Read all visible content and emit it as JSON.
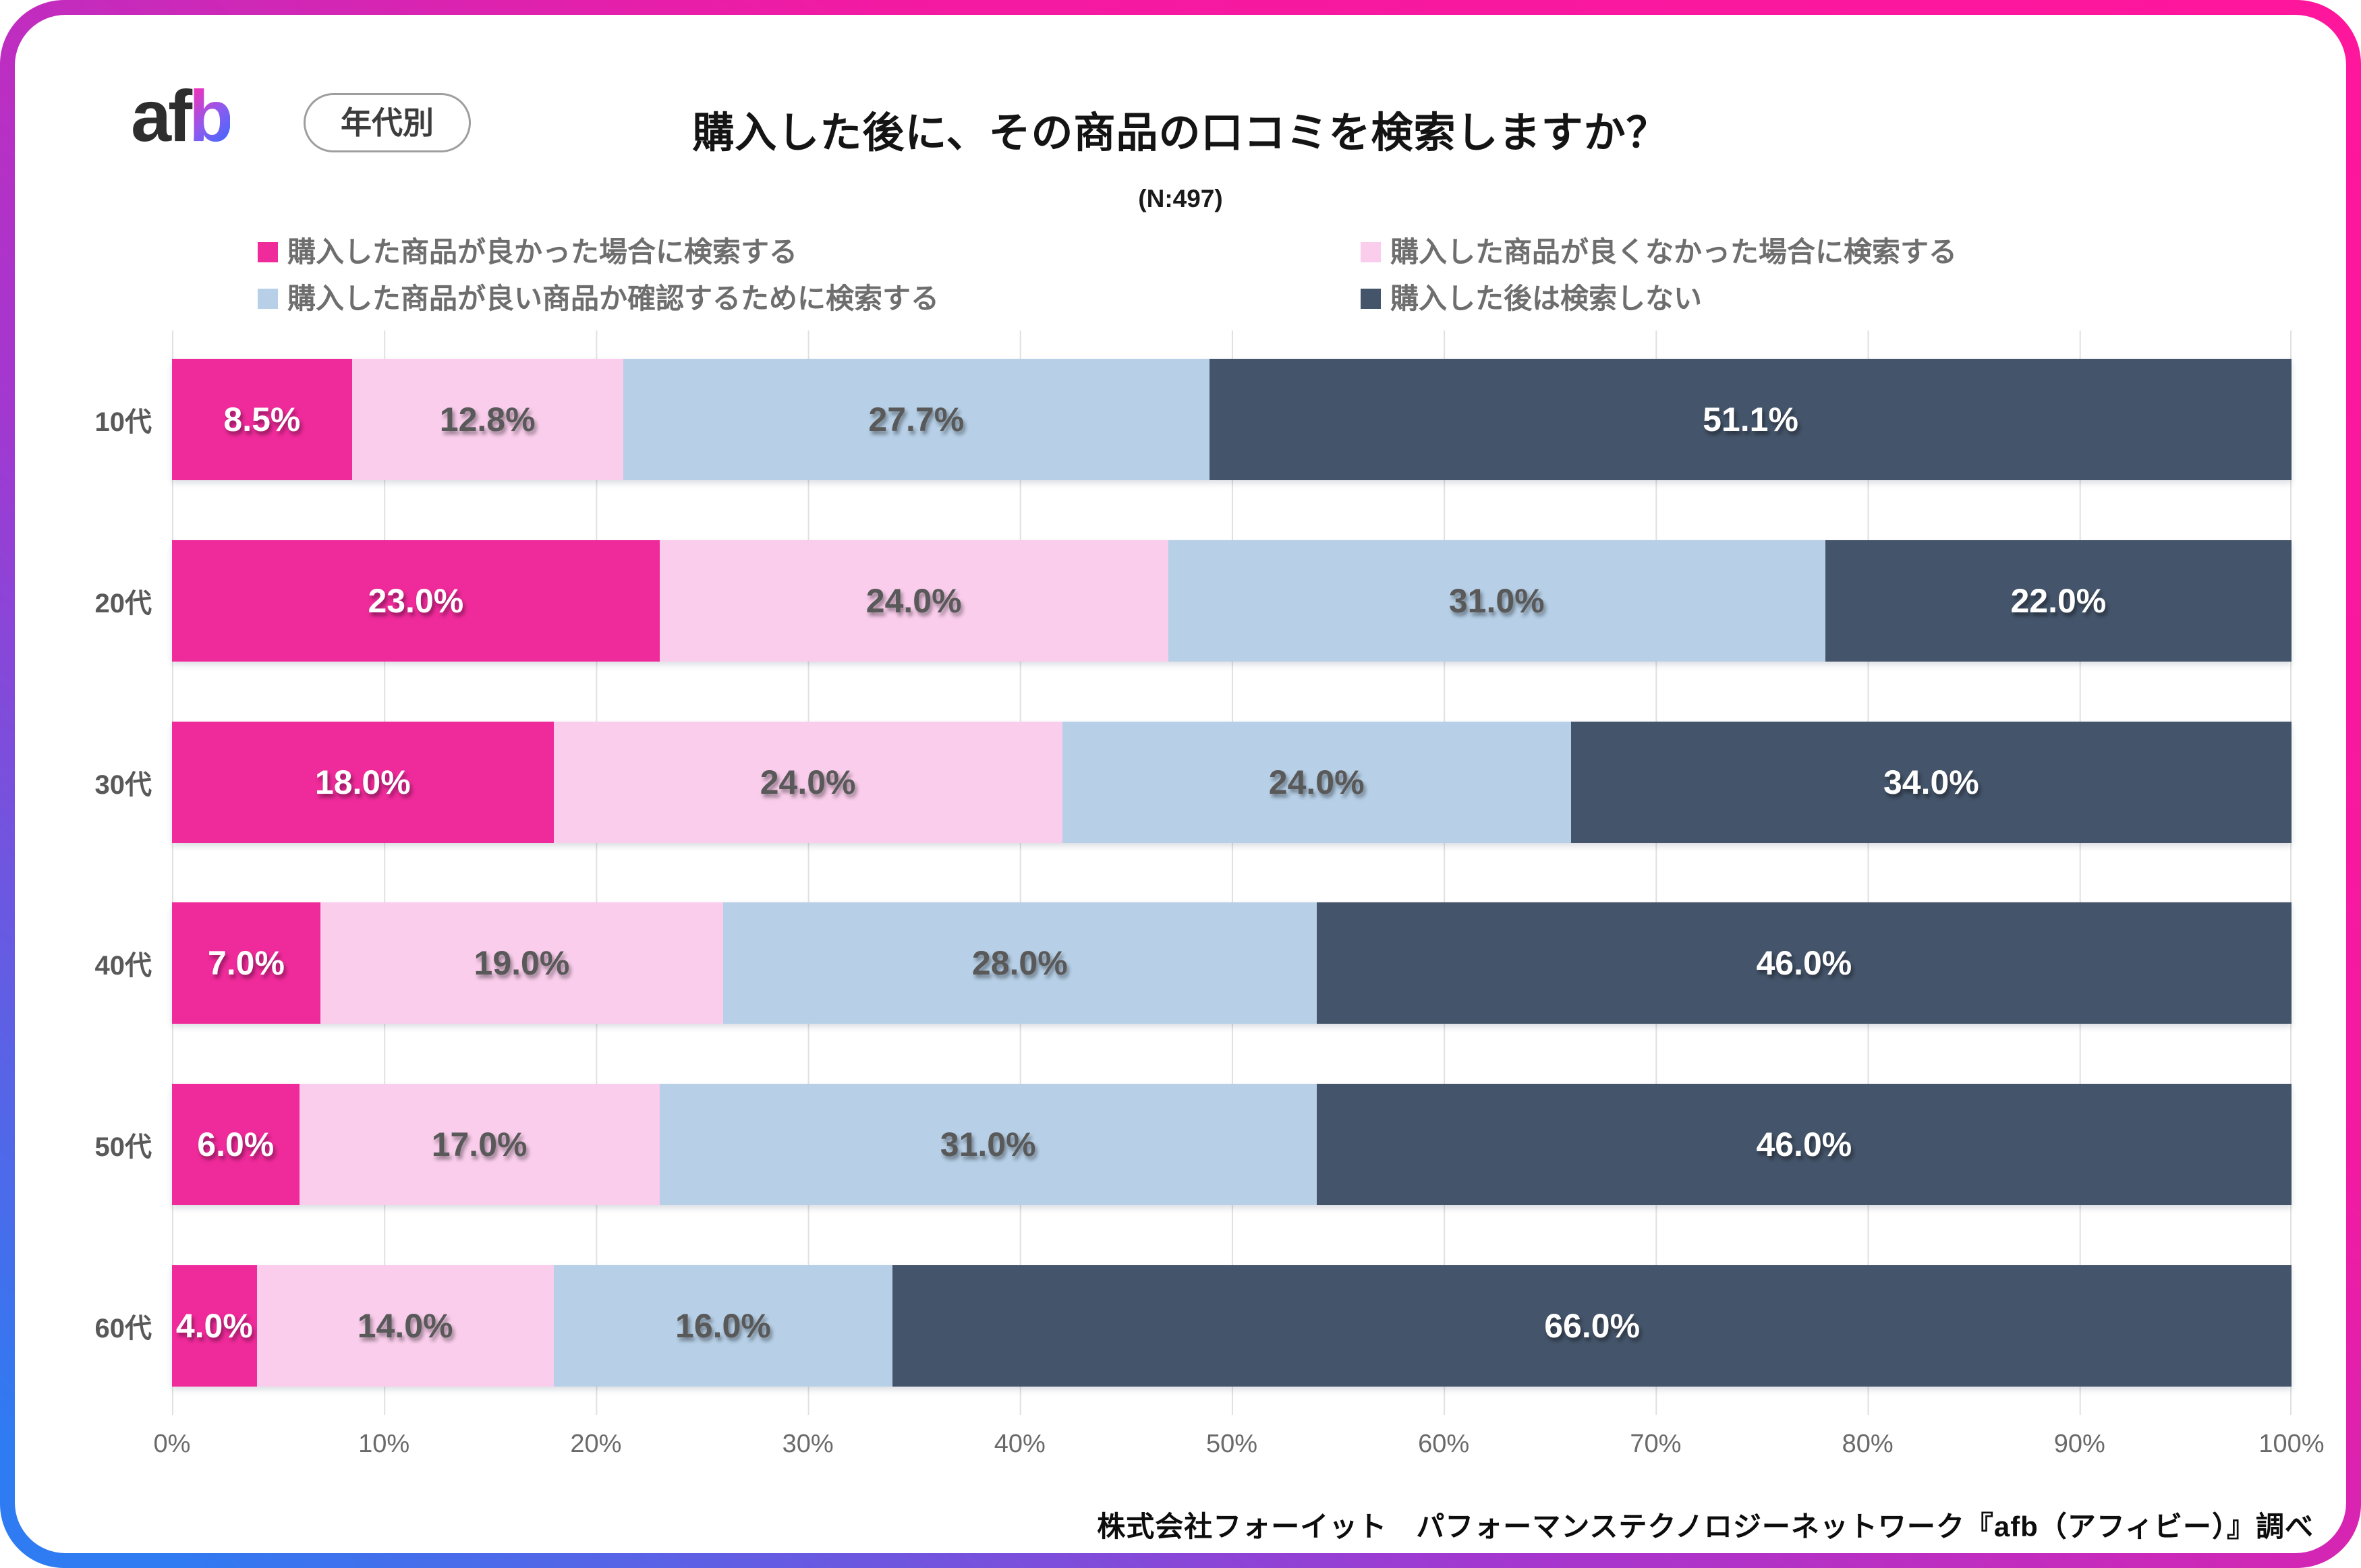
{
  "brand": {
    "logo_af": "af",
    "logo_b": "b",
    "badge": "年代別"
  },
  "header": {
    "title": "購入した後に、その商品の口コミを検索しますか？",
    "n_label": "(N:497)"
  },
  "chart_data": {
    "type": "bar",
    "orientation": "horizontal-stacked",
    "title": "購入した後に、その商品の口コミを検索しますか？",
    "sample_size": "N:497",
    "categories": [
      "10代",
      "20代",
      "30代",
      "40代",
      "50代",
      "60代"
    ],
    "series": [
      {
        "name": "購入した商品が良かった場合に検索する",
        "color": "#ef2a9a",
        "label_color": "#ffffff",
        "values": [
          8.5,
          23.0,
          18.0,
          7.0,
          6.0,
          4.0
        ]
      },
      {
        "name": "購入した商品が良くなかった場合に検索する",
        "color": "#f9cdeb",
        "label_color": "#595959",
        "values": [
          12.8,
          24.0,
          24.0,
          19.0,
          17.0,
          14.0
        ]
      },
      {
        "name": "購入した商品が良い商品か確認するために検索する",
        "color": "#b7d0e7",
        "label_color": "#595959",
        "values": [
          27.7,
          31.0,
          24.0,
          28.0,
          31.0,
          16.0
        ]
      },
      {
        "name": "購入した後は検索しない",
        "color": "#44546a",
        "label_color": "#ffffff",
        "values": [
          51.1,
          22.0,
          34.0,
          46.0,
          46.0,
          66.0
        ]
      }
    ],
    "x_ticks": [
      "0%",
      "10%",
      "20%",
      "30%",
      "40%",
      "50%",
      "60%",
      "70%",
      "80%",
      "90%",
      "100%"
    ],
    "xlim": [
      0,
      100
    ],
    "value_suffix": "%",
    "grid": true,
    "legend_position": "top"
  },
  "footer": {
    "source": "株式会社フォーイット　パフォーマンステクノロジーネットワーク『afb（アフィビー）』調べ"
  }
}
